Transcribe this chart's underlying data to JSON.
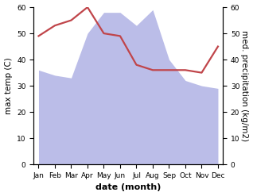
{
  "months": [
    "Jan",
    "Feb",
    "Mar",
    "Apr",
    "May",
    "Jun",
    "Jul",
    "Aug",
    "Sep",
    "Oct",
    "Nov",
    "Dec"
  ],
  "temperature": [
    36,
    34,
    33,
    50,
    58,
    58,
    53,
    59,
    40,
    32,
    30,
    29
  ],
  "precipitation": [
    49,
    53,
    55,
    60,
    50,
    49,
    38,
    36,
    36,
    36,
    35,
    45
  ],
  "precip_fill_color": "#bbbde8",
  "temp_line_color": "#c0454a",
  "ylim_left": [
    0,
    60
  ],
  "ylim_right": [
    0,
    60
  ],
  "yticks": [
    0,
    10,
    20,
    30,
    40,
    50,
    60
  ],
  "xlabel": "date (month)",
  "ylabel_left": "max temp (C)",
  "ylabel_right": "med. precipitation (kg/m2)",
  "label_fontsize": 7.5,
  "tick_fontsize": 6.5,
  "xlabel_fontsize": 8,
  "line_width": 1.6
}
